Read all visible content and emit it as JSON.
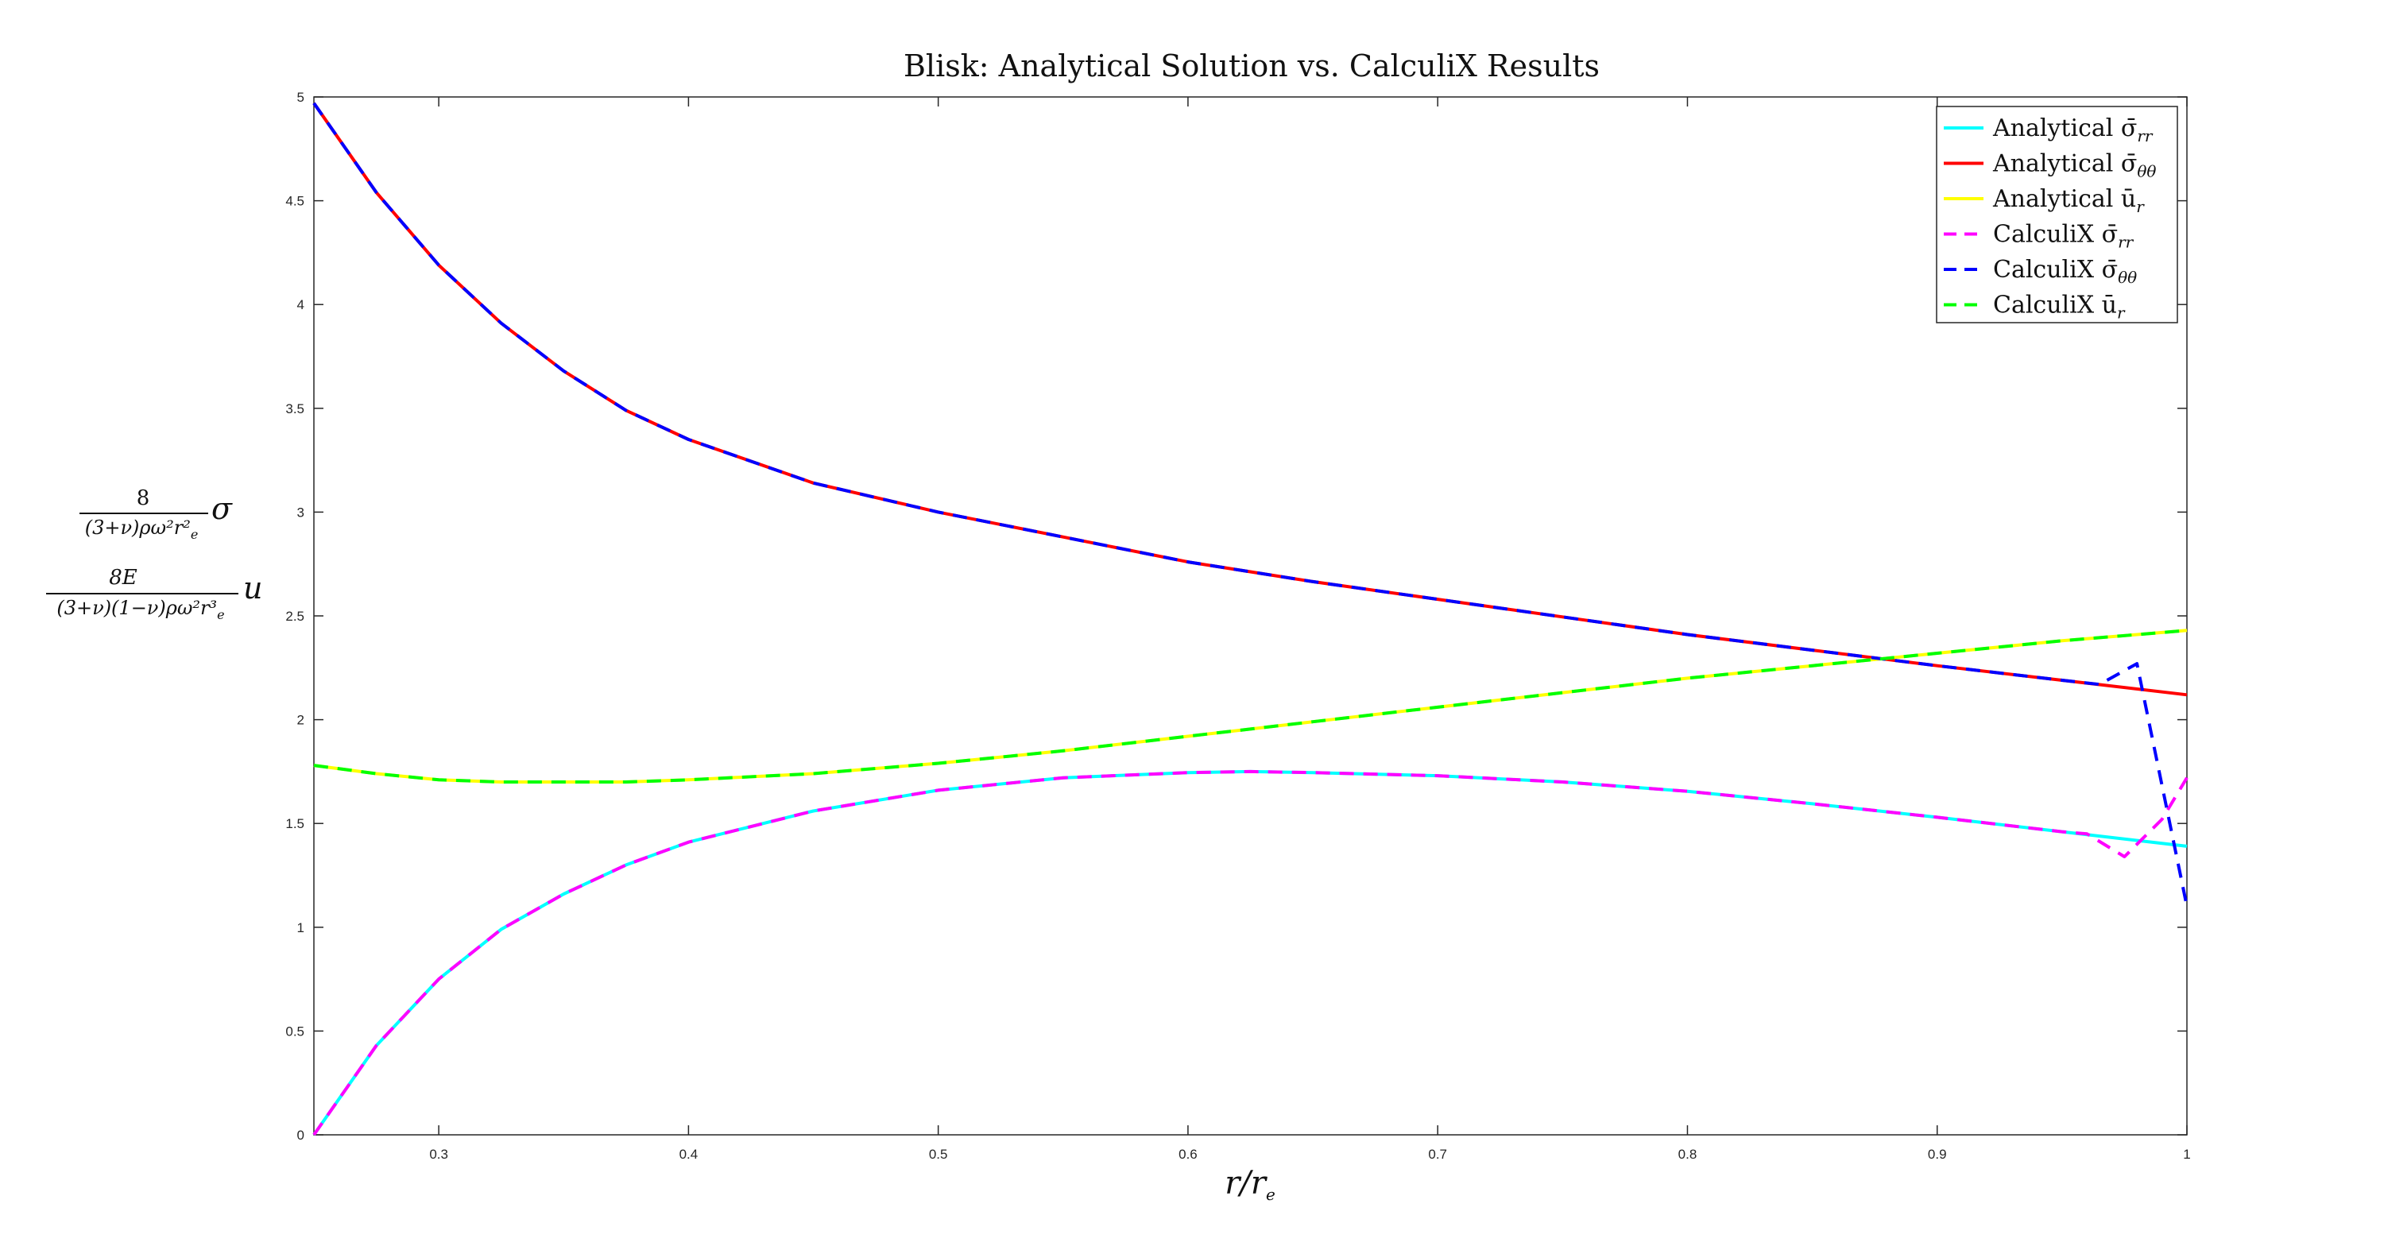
{
  "chart_data": {
    "type": "line",
    "title": "Blisk: Analytical Solution vs. CalculiX Results",
    "xlabel": {
      "main": "r/r",
      "sub": "e"
    },
    "ylabel": {
      "line1_num": "8",
      "line1_den": "(3+ν)ρω²r²",
      "line1_den_sub": "e",
      "line1_var": "σ",
      "line2_num": "8E",
      "line2_den": "(3+ν)(1−ν)ρω²r³",
      "line2_den_sub": "e",
      "line2_var": "u"
    },
    "xlim": [
      0.25,
      1.0
    ],
    "ylim": [
      0,
      5
    ],
    "xticks": [
      0.3,
      0.4,
      0.5,
      0.6,
      0.7,
      0.8,
      0.9,
      1
    ],
    "xtick_labels": [
      "0.3",
      "0.4",
      "0.5",
      "0.6",
      "0.7",
      "0.8",
      "0.9",
      "1"
    ],
    "yticks": [
      0,
      0.5,
      1,
      1.5,
      2,
      2.5,
      3,
      3.5,
      4,
      4.5,
      5
    ],
    "ytick_labels": [
      "0",
      "0.5",
      "1",
      "1.5",
      "2",
      "2.5",
      "3",
      "3.5",
      "4",
      "4.5",
      "5"
    ],
    "grid": false,
    "legend_position": "top-right",
    "series": [
      {
        "name": "Analytical σ̄rr",
        "legend_main": "Analytical σ̄",
        "legend_sub": "rr",
        "color": "#00ffff",
        "style": "solid",
        "x": [
          0.25,
          0.275,
          0.3,
          0.325,
          0.35,
          0.375,
          0.4,
          0.45,
          0.5,
          0.55,
          0.6,
          0.625,
          0.65,
          0.7,
          0.75,
          0.8,
          0.85,
          0.9,
          0.95,
          1.0
        ],
        "y": [
          0.0,
          0.43,
          0.75,
          0.99,
          1.16,
          1.3,
          1.41,
          1.56,
          1.66,
          1.72,
          1.745,
          1.75,
          1.745,
          1.73,
          1.7,
          1.655,
          1.595,
          1.53,
          1.46,
          1.39
        ]
      },
      {
        "name": "Analytical σ̄θθ",
        "legend_main": "Analytical σ̄",
        "legend_sub": "θθ",
        "color": "#ff0000",
        "style": "solid",
        "x": [
          0.25,
          0.275,
          0.3,
          0.325,
          0.35,
          0.375,
          0.4,
          0.45,
          0.5,
          0.55,
          0.6,
          0.65,
          0.7,
          0.75,
          0.8,
          0.85,
          0.9,
          0.95,
          1.0
        ],
        "y": [
          4.97,
          4.54,
          4.19,
          3.91,
          3.68,
          3.49,
          3.35,
          3.14,
          3.0,
          2.88,
          2.76,
          2.665,
          2.58,
          2.495,
          2.41,
          2.335,
          2.26,
          2.19,
          2.12
        ]
      },
      {
        "name": "Analytical ūr",
        "legend_main": "Analytical ū",
        "legend_sub": "r",
        "color": "#ffff00",
        "style": "solid",
        "x": [
          0.25,
          0.275,
          0.3,
          0.325,
          0.35,
          0.375,
          0.4,
          0.45,
          0.5,
          0.55,
          0.6,
          0.65,
          0.7,
          0.75,
          0.8,
          0.85,
          0.9,
          0.95,
          1.0
        ],
        "y": [
          1.78,
          1.74,
          1.71,
          1.7,
          1.7,
          1.7,
          1.71,
          1.74,
          1.79,
          1.85,
          1.92,
          1.99,
          2.06,
          2.13,
          2.2,
          2.26,
          2.32,
          2.38,
          2.43
        ]
      },
      {
        "name": "CalculiX σ̄rr",
        "legend_main": "CalculiX σ̄",
        "legend_sub": "rr",
        "color": "#ff00ff",
        "style": "dashed",
        "x": [
          0.25,
          0.275,
          0.3,
          0.325,
          0.35,
          0.375,
          0.4,
          0.45,
          0.5,
          0.55,
          0.6,
          0.625,
          0.65,
          0.7,
          0.75,
          0.8,
          0.85,
          0.9,
          0.95,
          0.96,
          0.975,
          0.99,
          1.0
        ],
        "y": [
          0.0,
          0.43,
          0.75,
          0.99,
          1.16,
          1.3,
          1.41,
          1.56,
          1.66,
          1.72,
          1.745,
          1.75,
          1.745,
          1.73,
          1.7,
          1.655,
          1.595,
          1.53,
          1.46,
          1.45,
          1.34,
          1.52,
          1.72
        ]
      },
      {
        "name": "CalculiX σ̄θθ",
        "legend_main": "CalculiX σ̄",
        "legend_sub": "θθ",
        "color": "#0000ff",
        "style": "dashed",
        "x": [
          0.25,
          0.275,
          0.3,
          0.325,
          0.35,
          0.375,
          0.4,
          0.45,
          0.5,
          0.55,
          0.6,
          0.65,
          0.7,
          0.75,
          0.8,
          0.85,
          0.9,
          0.95,
          0.965,
          0.98,
          1.0
        ],
        "y": [
          4.97,
          4.54,
          4.19,
          3.91,
          3.68,
          3.49,
          3.35,
          3.14,
          3.0,
          2.88,
          2.76,
          2.665,
          2.58,
          2.495,
          2.41,
          2.335,
          2.26,
          2.19,
          2.17,
          2.27,
          1.1
        ]
      },
      {
        "name": "CalculiX ūr",
        "legend_main": "CalculiX ū",
        "legend_sub": "r",
        "color": "#00ff00",
        "style": "dashed",
        "x": [
          0.25,
          0.275,
          0.3,
          0.325,
          0.35,
          0.375,
          0.4,
          0.45,
          0.5,
          0.55,
          0.6,
          0.65,
          0.7,
          0.75,
          0.8,
          0.85,
          0.9,
          0.95,
          1.0
        ],
        "y": [
          1.78,
          1.74,
          1.71,
          1.7,
          1.7,
          1.7,
          1.71,
          1.74,
          1.79,
          1.85,
          1.92,
          1.99,
          2.06,
          2.13,
          2.2,
          2.26,
          2.32,
          2.38,
          2.43
        ]
      }
    ]
  }
}
